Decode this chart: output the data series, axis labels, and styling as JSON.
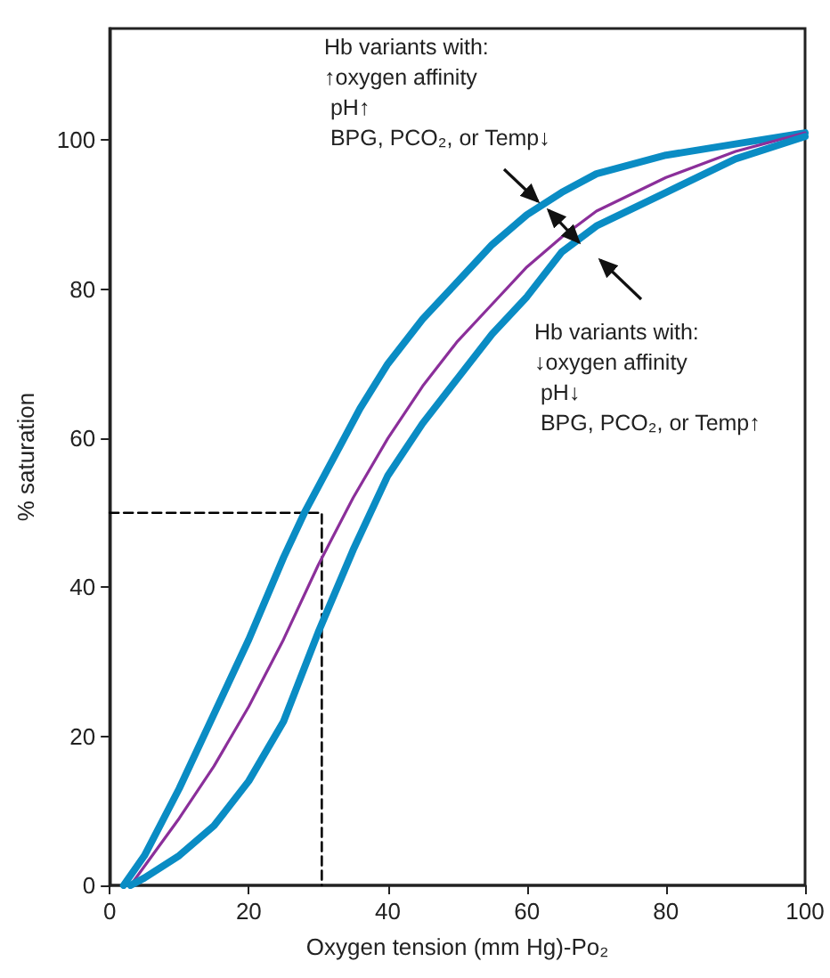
{
  "chart_data": {
    "type": "line",
    "xlabel": "Oxygen tension (mm Hg)-Po₂",
    "ylabel": "% saturation",
    "xlim": [
      0,
      100
    ],
    "xticks": [
      0,
      20,
      40,
      60,
      80,
      100
    ],
    "ylim": [
      0,
      115
    ],
    "yticks": [
      0,
      20,
      40,
      60,
      80,
      100
    ],
    "grid": false,
    "marker": "none",
    "series": [
      {
        "color": "#0a8cc4",
        "x": [
          2,
          5,
          10,
          15,
          20,
          25,
          28,
          32,
          36,
          40,
          45,
          50,
          55,
          60,
          65,
          70,
          80,
          90,
          100
        ],
        "values": [
          0,
          4,
          13,
          23,
          33,
          44,
          50,
          57,
          64,
          70,
          76,
          81,
          86,
          90,
          93,
          95.5,
          98,
          99.5,
          101
        ]
      },
      {
        "color": "#8b2f9a",
        "x": [
          3,
          10,
          15,
          20,
          25,
          30,
          35,
          40,
          45,
          50,
          55,
          60,
          65,
          70,
          80,
          90,
          100
        ],
        "values": [
          0,
          9,
          16,
          24,
          33,
          43,
          52,
          60,
          67,
          73,
          78,
          83,
          87,
          90.5,
          95,
          98.5,
          101
        ]
      },
      {
        "color": "#0a8cc4",
        "x": [
          3,
          5,
          10,
          15,
          20,
          25,
          30,
          35,
          40,
          45,
          50,
          55,
          60,
          65,
          70,
          80,
          90,
          100
        ],
        "values": [
          0,
          1,
          4,
          8,
          14,
          22,
          34,
          45,
          55,
          62,
          68,
          74,
          79,
          85,
          88.5,
          93,
          97.5,
          100.5
        ]
      },
      {
        "color": "#000000",
        "line_style": "dashed",
        "x": [
          0,
          30.5,
          30.5
        ],
        "values": [
          50,
          50,
          0
        ]
      }
    ],
    "annotations": [
      "Hb variants with:\n↑oxygen affinity\n pH↑\n BPG, PCO₂, or Temp↓",
      "Hb variants with:\n↓oxygen affinity\n pH↓\n BPG, PCO₂, or Temp↑"
    ]
  }
}
